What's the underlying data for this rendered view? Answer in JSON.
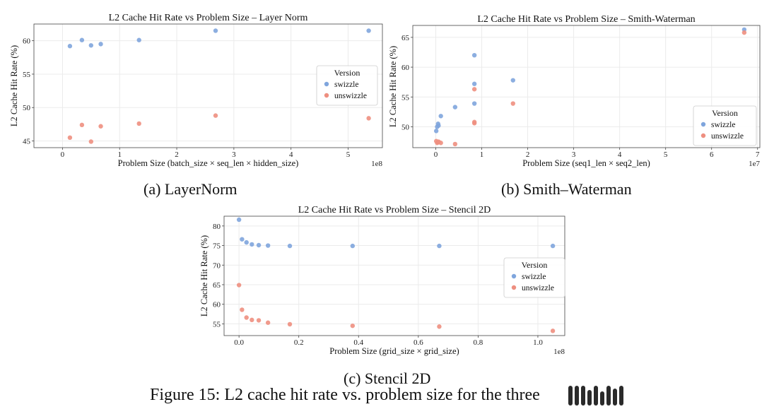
{
  "charts": [
    {
      "type": "scatter",
      "title": "L2 Cache Hit Rate vs Problem Size – Layer Norm",
      "xlabel": "Problem Size (batch_size × seq_len × hidden_size)",
      "ylabel": "L2 Cache Hit Rate (%)",
      "x_exponent": "1e8",
      "xlim": [
        -0.5,
        5.6
      ],
      "ylim": [
        44,
        62.5
      ],
      "xticks": [
        0,
        1,
        2,
        3,
        4,
        5
      ],
      "yticks": [
        45,
        50,
        55,
        60
      ],
      "grid": true,
      "legend": {
        "title": "Version",
        "placement": "center-right"
      },
      "series": [
        {
          "name": "swizzle",
          "color": "#7fa5dd",
          "x": [
            0.13,
            0.34,
            0.5,
            0.67,
            1.34,
            2.68,
            5.36
          ],
          "y": [
            59.2,
            60.1,
            59.3,
            59.5,
            60.1,
            61.5,
            61.5
          ]
        },
        {
          "name": "unswizzle",
          "color": "#ee8f80",
          "x": [
            0.13,
            0.34,
            0.5,
            0.67,
            1.34,
            2.68,
            5.36
          ],
          "y": [
            45.5,
            47.4,
            44.9,
            47.2,
            47.6,
            48.8,
            48.4
          ]
        }
      ]
    },
    {
      "type": "scatter",
      "title": "L2 Cache Hit Rate vs Problem Size – Smith-Waterman",
      "xlabel": "Problem Size (seq1_len × seq2_len)",
      "ylabel": "L2 Cache Hit Rate (%)",
      "x_exponent": "1e7",
      "xlim": [
        -0.5,
        7.05
      ],
      "ylim": [
        46.5,
        67
      ],
      "xticks": [
        0,
        1,
        2,
        3,
        4,
        5,
        6,
        7
      ],
      "yticks": [
        50,
        55,
        60,
        65
      ],
      "grid": true,
      "legend": {
        "title": "Version",
        "placement": "lower-right"
      },
      "series": [
        {
          "name": "swizzle",
          "color": "#7fa5dd",
          "x": [
            0.01,
            0.03,
            0.05,
            0.06,
            0.11,
            0.42,
            0.84,
            0.84,
            0.84,
            1.68,
            6.71
          ],
          "y": [
            49.3,
            50.0,
            50.5,
            50.2,
            51.8,
            53.3,
            53.9,
            57.2,
            62.0,
            57.8,
            66.3
          ]
        },
        {
          "name": "unswizzle",
          "color": "#ee8f80",
          "x": [
            0.01,
            0.03,
            0.05,
            0.06,
            0.11,
            0.42,
            0.84,
            0.84,
            0.84,
            1.68,
            6.71
          ],
          "y": [
            47.6,
            47.3,
            47.4,
            47.5,
            47.3,
            47.1,
            50.6,
            50.8,
            56.3,
            53.9,
            65.8
          ]
        }
      ]
    },
    {
      "type": "scatter",
      "title": "L2 Cache Hit Rate vs Problem Size – Stencil 2D",
      "xlabel": "Problem Size (grid_size × grid_size)",
      "ylabel": "L2 Cache Hit Rate (%)",
      "x_exponent": "1e8",
      "xlim": [
        -0.05,
        1.09
      ],
      "ylim": [
        52,
        82.5
      ],
      "xticks": [
        0.0,
        0.2,
        0.4,
        0.6,
        0.8,
        1.0
      ],
      "yticks": [
        55,
        60,
        65,
        70,
        75,
        80
      ],
      "grid": true,
      "legend": {
        "title": "Version",
        "placement": "center-right"
      },
      "series": [
        {
          "name": "swizzle",
          "color": "#7fa5dd",
          "x": [
            0.0,
            0.01,
            0.025,
            0.043,
            0.066,
            0.097,
            0.17,
            0.38,
            0.67,
            1.05
          ],
          "y": [
            81.6,
            76.6,
            75.8,
            75.3,
            75.1,
            75.0,
            74.9,
            74.9,
            74.9,
            74.9
          ]
        },
        {
          "name": "unswizzle",
          "color": "#ee8f80",
          "x": [
            0.0,
            0.01,
            0.025,
            0.043,
            0.066,
            0.097,
            0.17,
            0.38,
            0.67,
            1.05
          ],
          "y": [
            64.9,
            58.6,
            56.6,
            56.0,
            55.9,
            55.3,
            54.9,
            54.5,
            54.3,
            53.2
          ]
        }
      ]
    }
  ],
  "captions": {
    "a": "(a) LayerNorm",
    "b": "(b) Smith–Waterman",
    "c": "(c) Stencil 2D",
    "figure": "Figure 15: L2 cache hit rate vs. problem size for the three"
  }
}
